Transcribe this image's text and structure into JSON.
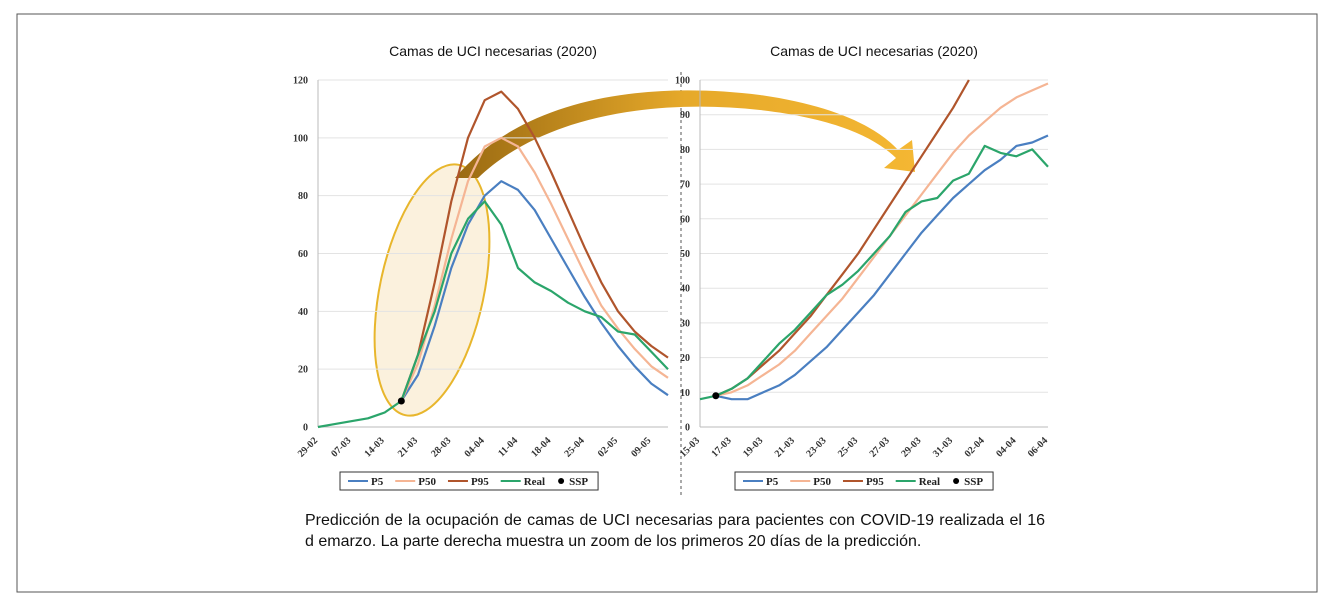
{
  "chart_data": [
    {
      "type": "line",
      "title": "Camas de UCI necesarias (2020)",
      "categories": [
        "29-02",
        null,
        "07-03",
        null,
        "14-03",
        null,
        "21-03",
        null,
        "28-03",
        null,
        "04-04",
        null,
        "11-04",
        null,
        "18-04",
        null,
        "25-04",
        null,
        "02-05",
        null,
        "09-05",
        null
      ],
      "ylim": [
        0,
        120
      ],
      "yticks": [
        0,
        20,
        40,
        60,
        80,
        100,
        120
      ],
      "grid": true,
      "series": [
        {
          "name": "P5",
          "color": "#4a7fc1",
          "values": [
            null,
            null,
            null,
            null,
            null,
            9,
            18,
            35,
            55,
            70,
            80,
            85,
            82,
            75,
            65,
            55,
            45,
            36,
            28,
            21,
            15,
            11
          ]
        },
        {
          "name": "P50",
          "color": "#f5b594",
          "values": [
            null,
            null,
            null,
            null,
            null,
            9,
            22,
            42,
            65,
            85,
            97,
            100,
            97,
            88,
            77,
            65,
            53,
            42,
            34,
            27,
            21,
            17
          ]
        },
        {
          "name": "P95",
          "color": "#b0552c",
          "values": [
            null,
            null,
            null,
            null,
            null,
            9,
            25,
            50,
            78,
            100,
            113,
            116,
            110,
            100,
            88,
            75,
            62,
            50,
            40,
            33,
            28,
            24
          ]
        },
        {
          "name": "Real",
          "color": "#2ba56b",
          "values": [
            0,
            1,
            2,
            3,
            5,
            9,
            25,
            40,
            60,
            72,
            78,
            70,
            55,
            50,
            47,
            43,
            40,
            38,
            33,
            32,
            26,
            20
          ]
        },
        {
          "name": "SSP",
          "color": "#000000",
          "style": "point",
          "values": [
            null,
            null,
            null,
            null,
            null,
            9,
            null,
            null,
            null,
            null,
            null,
            null,
            null,
            null,
            null,
            null,
            null,
            null,
            null,
            null,
            null,
            null
          ]
        }
      ]
    },
    {
      "type": "line",
      "title": "Camas de UCI necesarias (2020)",
      "categories": [
        "15-03",
        null,
        "17-03",
        null,
        "19-03",
        null,
        "21-03",
        null,
        "23-03",
        null,
        "25-03",
        null,
        "27-03",
        null,
        "29-03",
        null,
        "31-03",
        null,
        "02-04",
        null,
        "04-04",
        null,
        "06-04"
      ],
      "ylim": [
        0,
        100
      ],
      "yticks": [
        0,
        10,
        20,
        30,
        40,
        50,
        60,
        70,
        80,
        90,
        100
      ],
      "grid": true,
      "series": [
        {
          "name": "P5",
          "color": "#4a7fc1",
          "values": [
            null,
            9,
            8,
            8,
            10,
            12,
            15,
            19,
            23,
            28,
            33,
            38,
            44,
            50,
            56,
            61,
            66,
            70,
            74,
            77,
            81,
            82,
            84
          ]
        },
        {
          "name": "P50",
          "color": "#f5b594",
          "values": [
            null,
            9,
            10,
            12,
            15,
            18,
            22,
            27,
            32,
            37,
            43,
            49,
            55,
            61,
            67,
            73,
            79,
            84,
            88,
            92,
            95,
            97,
            99
          ]
        },
        {
          "name": "P95",
          "color": "#b0552c",
          "values": [
            null,
            9,
            11,
            14,
            18,
            22,
            27,
            32,
            38,
            44,
            50,
            57,
            64,
            71,
            78,
            85,
            92,
            100,
            null,
            null,
            null,
            null,
            null
          ]
        },
        {
          "name": "Real",
          "color": "#2ba56b",
          "values": [
            8,
            9,
            11,
            14,
            19,
            24,
            28,
            33,
            38,
            41,
            45,
            50,
            55,
            62,
            65,
            66,
            71,
            73,
            81,
            79,
            78,
            80,
            75
          ]
        },
        {
          "name": "SSP",
          "color": "#000000",
          "style": "point",
          "values": [
            null,
            9,
            null,
            null,
            null,
            null,
            null,
            null,
            null,
            null,
            null,
            null,
            null,
            null,
            null,
            null,
            null,
            null,
            null,
            null,
            null,
            null,
            null
          ]
        }
      ]
    }
  ],
  "caption": "Predicción de la ocupación de camas de UCI necesarias para pacientes con COVID-19 realizada el 16 d emarzo. La parte derecha muestra un zoom de los primeros 20 días de la predicción."
}
